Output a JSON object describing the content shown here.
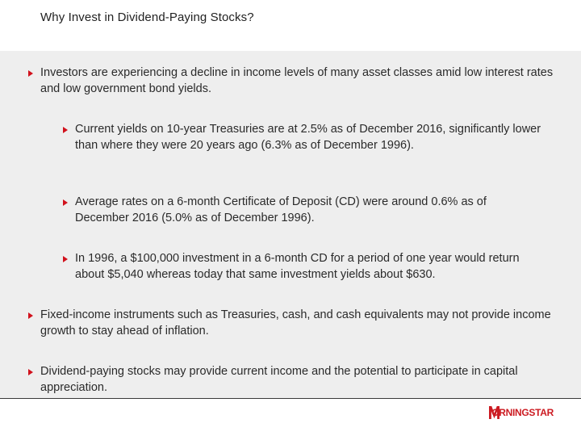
{
  "slide": {
    "title": "Why Invest in Dividend-Paying Stocks?"
  },
  "bullets": {
    "b1": "Investors are experiencing a decline in income levels of many asset classes amid low interest rates and low government bond yields.",
    "b1_1": "Current yields on 10-year Treasuries are at 2.5% as of December 2016, significantly lower than where they were 20 years ago (6.3% as of December 1996).",
    "b1_2": "Average rates on a 6-month Certificate of Deposit (CD) were around 0.6% as of December 2016 (5.0% as of December 1996).",
    "b1_3": "In 1996, a $100,000 investment in a 6-month CD for a period of one year would return about $5,040 whereas today that same investment yields about $630.",
    "b2": "Fixed-income instruments such as Treasuries, cash, and cash equivalents may not provide income growth to stay ahead of inflation.",
    "b3": "Dividend-paying stocks may provide current income and the potential to participate in capital appreciation."
  },
  "logo": {
    "text": "ORNINGSTAR",
    "mark": "M",
    "full": "MORNINGSTAR",
    "color": "#cc1b22"
  },
  "colors": {
    "bullet_marker": "#d1111c",
    "band": "#eeeeee"
  }
}
